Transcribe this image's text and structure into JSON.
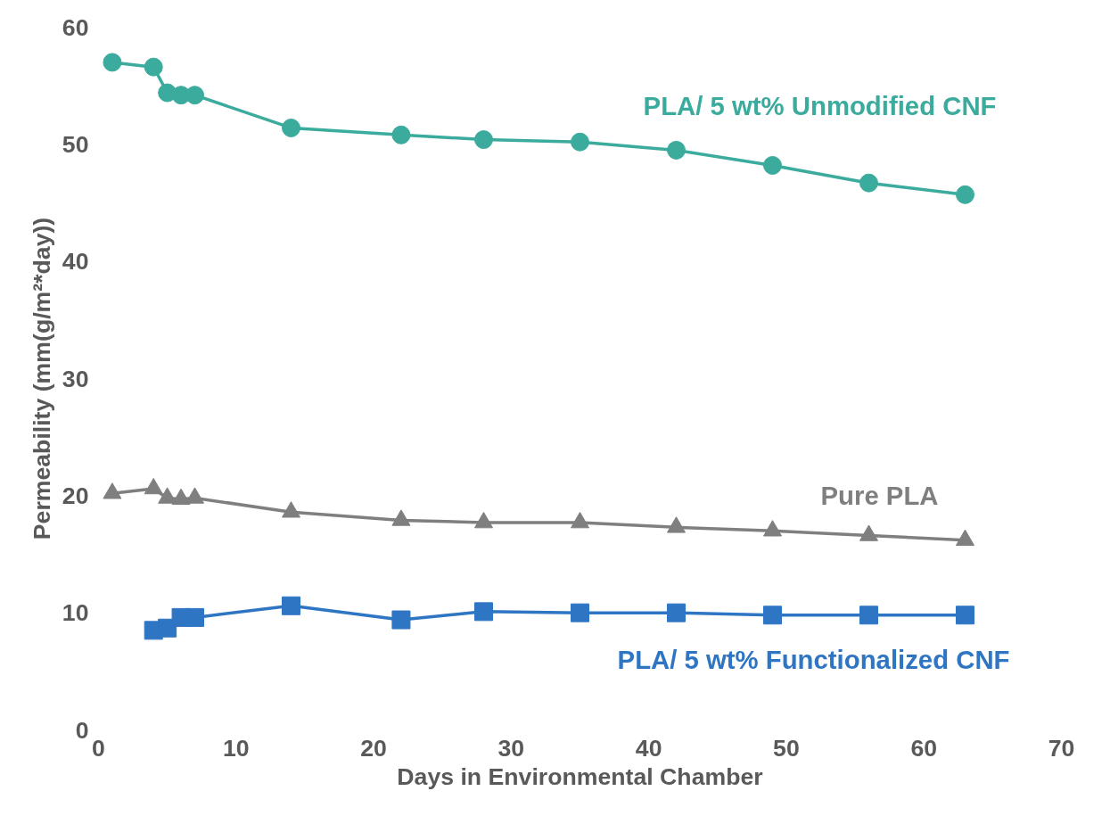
{
  "chart_data": {
    "type": "line",
    "xlabel": "Days in Environmental Chamber",
    "ylabel": "Permeability (mm(g/m²*day))",
    "xlim": [
      0,
      70
    ],
    "xticks": [
      0,
      10,
      20,
      30,
      40,
      50,
      60,
      70
    ],
    "ylim": [
      0,
      60
    ],
    "yticks": [
      0,
      10,
      20,
      30,
      40,
      50,
      60
    ],
    "grid": false,
    "line_style": "solid",
    "series": [
      {
        "name": "PLA/ 5 wt% Unmodified CNF",
        "color": "#3aab9c",
        "marker": "circle",
        "x": [
          1,
          4,
          5,
          6,
          7,
          14,
          22,
          28,
          35,
          42,
          49,
          56,
          63
        ],
        "values": [
          57.0,
          56.6,
          54.4,
          54.2,
          54.2,
          51.4,
          50.8,
          50.4,
          50.2,
          49.5,
          48.2,
          46.7,
          45.7
        ]
      },
      {
        "name": "Pure PLA",
        "color": "#7f7f7f",
        "marker": "triangle",
        "x": [
          1,
          4,
          5,
          6,
          7,
          14,
          22,
          28,
          35,
          42,
          49,
          56,
          63
        ],
        "values": [
          20.2,
          20.6,
          19.8,
          19.7,
          19.8,
          18.6,
          17.9,
          17.7,
          17.7,
          17.3,
          17.0,
          16.6,
          16.2
        ]
      },
      {
        "name": "PLA/ 5 wt% Functionalized CNF",
        "color": "#2e75c3",
        "marker": "square",
        "x": [
          4,
          5,
          6,
          7,
          14,
          22,
          28,
          35,
          42,
          49,
          56,
          63
        ],
        "values": [
          8.5,
          8.7,
          9.6,
          9.6,
          10.6,
          9.4,
          10.1,
          10.0,
          10.0,
          9.8,
          9.8,
          9.8
        ]
      }
    ]
  }
}
